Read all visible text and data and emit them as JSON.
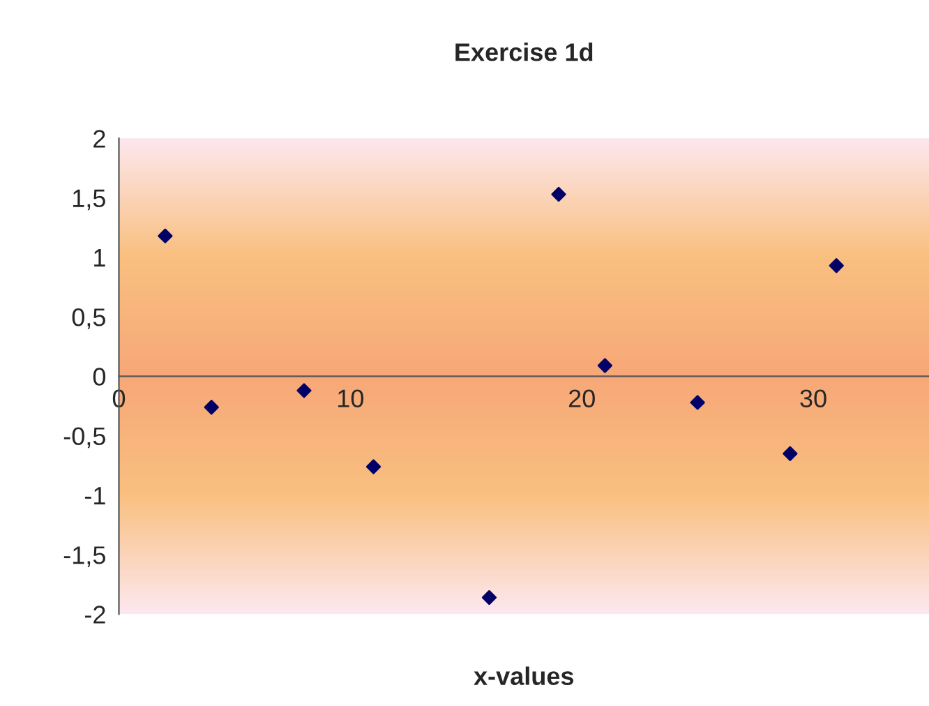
{
  "chart_data": {
    "type": "scatter",
    "title": "Exercise 1d",
    "xlabel": "x-values",
    "x": [
      2,
      4,
      8,
      11,
      16,
      19,
      21,
      25,
      29,
      31
    ],
    "series": [
      {
        "color": "#000066",
        "values": [
          1.18,
          -0.26,
          -0.12,
          -0.76,
          -1.86,
          1.53,
          0.09,
          -0.22,
          -0.65,
          0.93
        ]
      }
    ],
    "marker": "diamond",
    "grid": false,
    "legend": false,
    "xlim": [
      0,
      35
    ],
    "xticks": [
      0,
      10,
      20,
      30
    ],
    "ylim": [
      -2,
      2
    ],
    "yticks": [
      {
        "value": -2,
        "label": "-2"
      },
      {
        "value": -1.5,
        "label": "-1,5"
      },
      {
        "value": -1,
        "label": "-1"
      },
      {
        "value": -0.5,
        "label": "-0,5"
      },
      0,
      {
        "value": 0.5,
        "label": "0,5"
      },
      1,
      {
        "value": 1.5,
        "label": "1,5"
      },
      2
    ]
  }
}
